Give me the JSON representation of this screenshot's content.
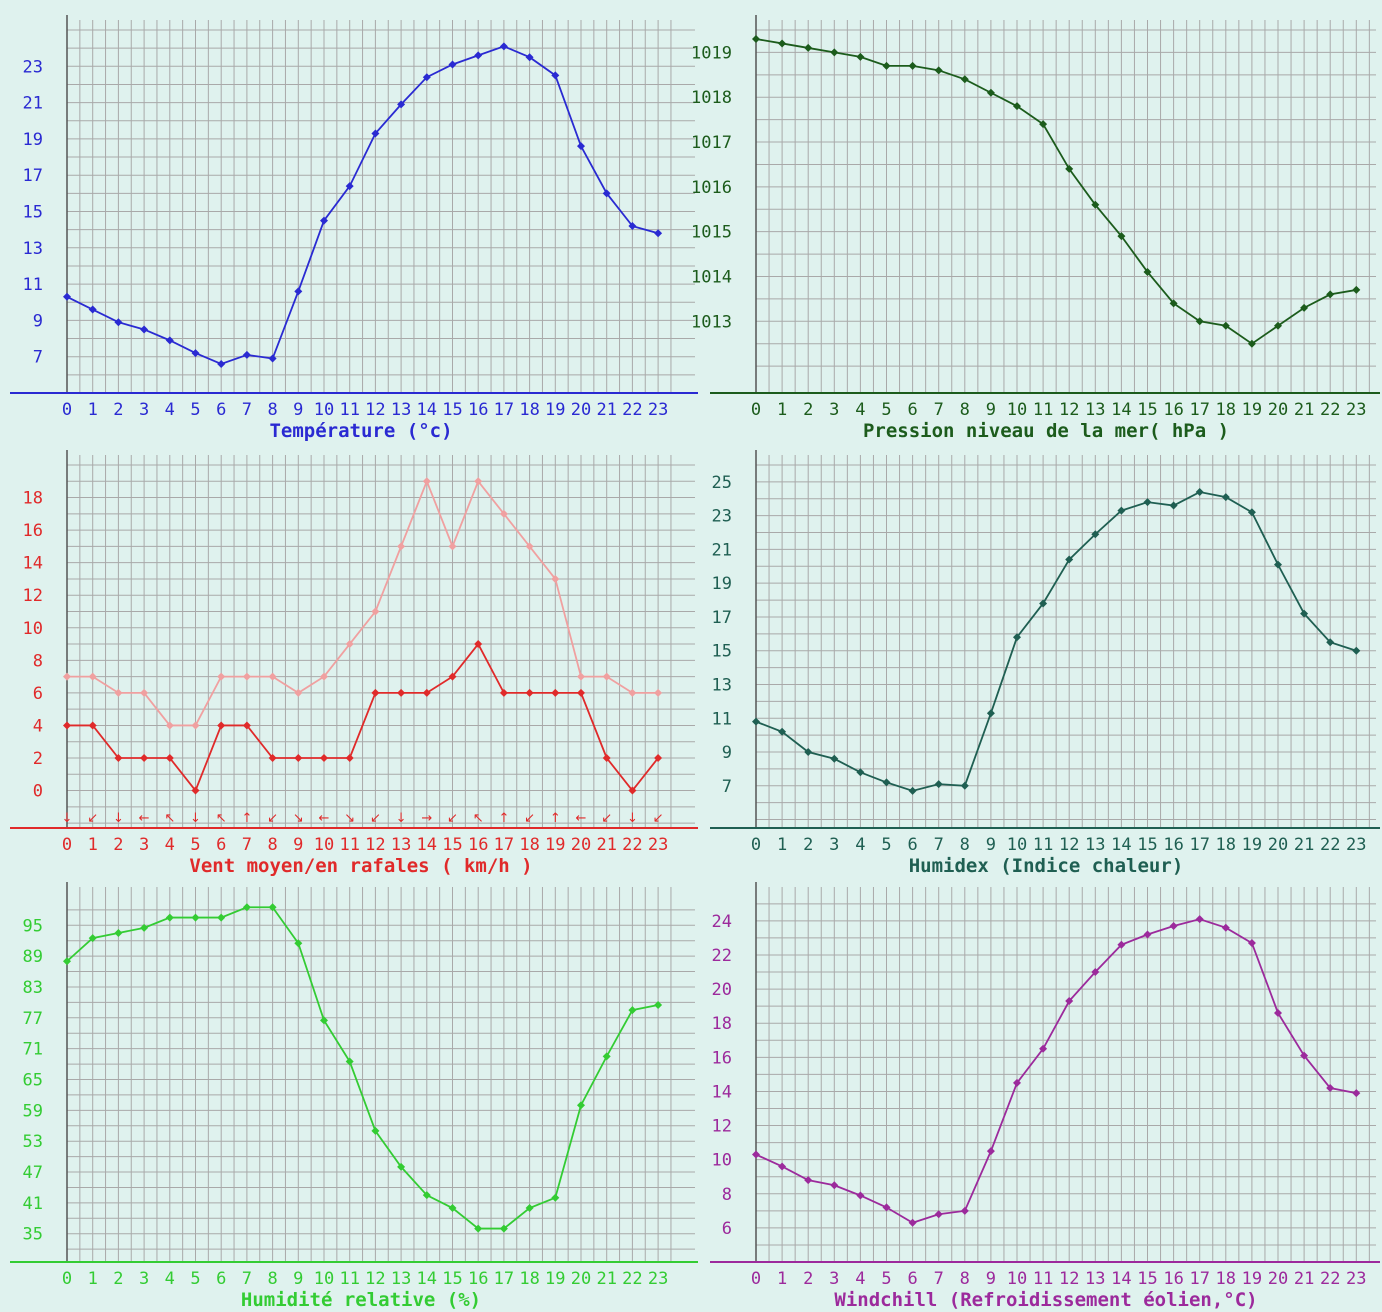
{
  "hours": [
    "0",
    "1",
    "2",
    "3",
    "4",
    "5",
    "6",
    "7",
    "8",
    "9",
    "10",
    "11",
    "12",
    "13",
    "14",
    "15",
    "16",
    "17",
    "18",
    "19",
    "20",
    "21",
    "22",
    "23"
  ],
  "chart_data": [
    {
      "id": "temperature",
      "type": "line",
      "title": "Température (°c)",
      "color": "#2a2ad2",
      "x": [
        0,
        1,
        2,
        3,
        4,
        5,
        6,
        7,
        8,
        9,
        10,
        11,
        12,
        13,
        14,
        15,
        16,
        17,
        18,
        19,
        20,
        21,
        22,
        23
      ],
      "yticks": [
        7,
        9,
        11,
        13,
        15,
        17,
        19,
        21,
        23
      ],
      "ylim": [
        5,
        25
      ],
      "series": [
        {
          "values": [
            10.3,
            9.6,
            8.9,
            8.5,
            7.9,
            7.2,
            6.6,
            7.1,
            6.9,
            10.6,
            14.5,
            16.4,
            19.3,
            20.9,
            22.4,
            23.1,
            23.6,
            24.1,
            23.5,
            22.5,
            18.6,
            16.0,
            14.2,
            13.8
          ]
        }
      ],
      "grid": true
    },
    {
      "id": "pressure",
      "type": "line",
      "title": "Pression niveau de la mer( hPa )",
      "color": "#1c5c1c",
      "x": [
        0,
        1,
        2,
        3,
        4,
        5,
        6,
        7,
        8,
        9,
        10,
        11,
        12,
        13,
        14,
        15,
        16,
        17,
        18,
        19,
        20,
        21,
        22,
        23
      ],
      "yticks": [
        1013,
        1014,
        1015,
        1016,
        1017,
        1018,
        1019
      ],
      "ylim": [
        1011.4,
        1019.5
      ],
      "series": [
        {
          "values": [
            1019.3,
            1019.2,
            1019.1,
            1019.0,
            1018.9,
            1018.7,
            1018.7,
            1018.6,
            1018.4,
            1018.1,
            1017.8,
            1017.4,
            1016.4,
            1015.6,
            1014.9,
            1014.1,
            1013.4,
            1013.0,
            1012.9,
            1012.5,
            1012.9,
            1013.3,
            1013.6,
            1013.7
          ]
        }
      ],
      "grid": true
    },
    {
      "id": "wind",
      "type": "line",
      "title": "Vent moyen/en rafales ( km/h )",
      "color": "#e02a2a",
      "x": [
        0,
        1,
        2,
        3,
        4,
        5,
        6,
        7,
        8,
        9,
        10,
        11,
        12,
        13,
        14,
        15,
        16,
        17,
        18,
        19,
        20,
        21,
        22,
        23
      ],
      "yticks": [
        0,
        2,
        4,
        6,
        8,
        10,
        12,
        14,
        16,
        18
      ],
      "ylim": [
        -2.3,
        20
      ],
      "series": [
        {
          "name": "",
          "color": "#f0a0a0",
          "values": [
            7,
            7,
            6,
            6,
            4,
            4,
            7,
            7,
            7,
            6,
            7,
            9,
            11,
            15,
            19,
            15,
            19,
            17,
            15,
            13,
            7,
            7,
            6,
            6
          ]
        },
        {
          "name": "",
          "color": "#e02a2a",
          "values": [
            4,
            4,
            2,
            2,
            2,
            0,
            4,
            4,
            2,
            2,
            2,
            2,
            6,
            6,
            6,
            7,
            9,
            6,
            6,
            6,
            6,
            2,
            0,
            2
          ]
        }
      ],
      "wind_directions": [
        "↓",
        "↙",
        "↓",
        "←",
        "↖",
        "↓",
        "↖",
        "↑",
        "↙",
        "↘",
        "←",
        "↘",
        "↙",
        "↓",
        "→",
        "↙",
        "↖",
        "↑",
        "↙",
        "↑",
        "←",
        "↙",
        "↓",
        "↙"
      ],
      "grid": true
    },
    {
      "id": "humidex",
      "type": "line",
      "title": "Humidex (Indice chaleur)",
      "color": "#1f5f52",
      "x": [
        0,
        1,
        2,
        3,
        4,
        5,
        6,
        7,
        8,
        9,
        10,
        11,
        12,
        13,
        14,
        15,
        16,
        17,
        18,
        19,
        20,
        21,
        22,
        23
      ],
      "yticks": [
        7,
        9,
        11,
        13,
        15,
        17,
        19,
        21,
        23,
        25
      ],
      "ylim": [
        4.5,
        26
      ],
      "series": [
        {
          "values": [
            10.8,
            10.2,
            9.0,
            8.6,
            7.8,
            7.2,
            6.7,
            7.1,
            7.0,
            11.3,
            15.8,
            17.8,
            20.4,
            21.9,
            23.3,
            23.8,
            23.6,
            24.4,
            24.1,
            23.2,
            20.1,
            17.2,
            15.5,
            15.0
          ]
        }
      ],
      "grid": true
    },
    {
      "id": "humidity",
      "type": "line",
      "title": "Humidité relative (%)",
      "color": "#33cc33",
      "x": [
        0,
        1,
        2,
        3,
        4,
        5,
        6,
        7,
        8,
        9,
        10,
        11,
        12,
        13,
        14,
        15,
        16,
        17,
        18,
        19,
        20,
        21,
        22,
        23
      ],
      "yticks": [
        35,
        41,
        47,
        53,
        59,
        65,
        71,
        77,
        83,
        89,
        95
      ],
      "ylim": [
        29.5,
        100.5
      ],
      "series": [
        {
          "values": [
            88,
            92.5,
            93.5,
            94.5,
            96.5,
            96.5,
            96.5,
            98.5,
            98.5,
            91.5,
            76.5,
            68.5,
            55,
            48,
            42.5,
            40,
            36,
            36,
            40,
            42,
            60,
            69.5,
            78.5,
            79.5
          ]
        }
      ],
      "grid": true
    },
    {
      "id": "windchill",
      "type": "line",
      "title": "Windchill (Refroidissement éolien,°C)",
      "color": "#9c2a9c",
      "x": [
        0,
        1,
        2,
        3,
        4,
        5,
        6,
        7,
        8,
        9,
        10,
        11,
        12,
        13,
        14,
        15,
        16,
        17,
        18,
        19,
        20,
        21,
        22,
        23
      ],
      "yticks": [
        6,
        8,
        10,
        12,
        14,
        16,
        18,
        20,
        22,
        24
      ],
      "ylim": [
        4,
        25.4
      ],
      "series": [
        {
          "values": [
            10.3,
            9.6,
            8.8,
            8.5,
            7.9,
            7.2,
            6.3,
            6.8,
            7.0,
            10.5,
            14.5,
            16.5,
            19.3,
            21.0,
            22.6,
            23.2,
            23.7,
            24.1,
            23.6,
            22.7,
            18.6,
            16.1,
            14.2,
            13.9
          ]
        }
      ],
      "grid": true
    }
  ]
}
